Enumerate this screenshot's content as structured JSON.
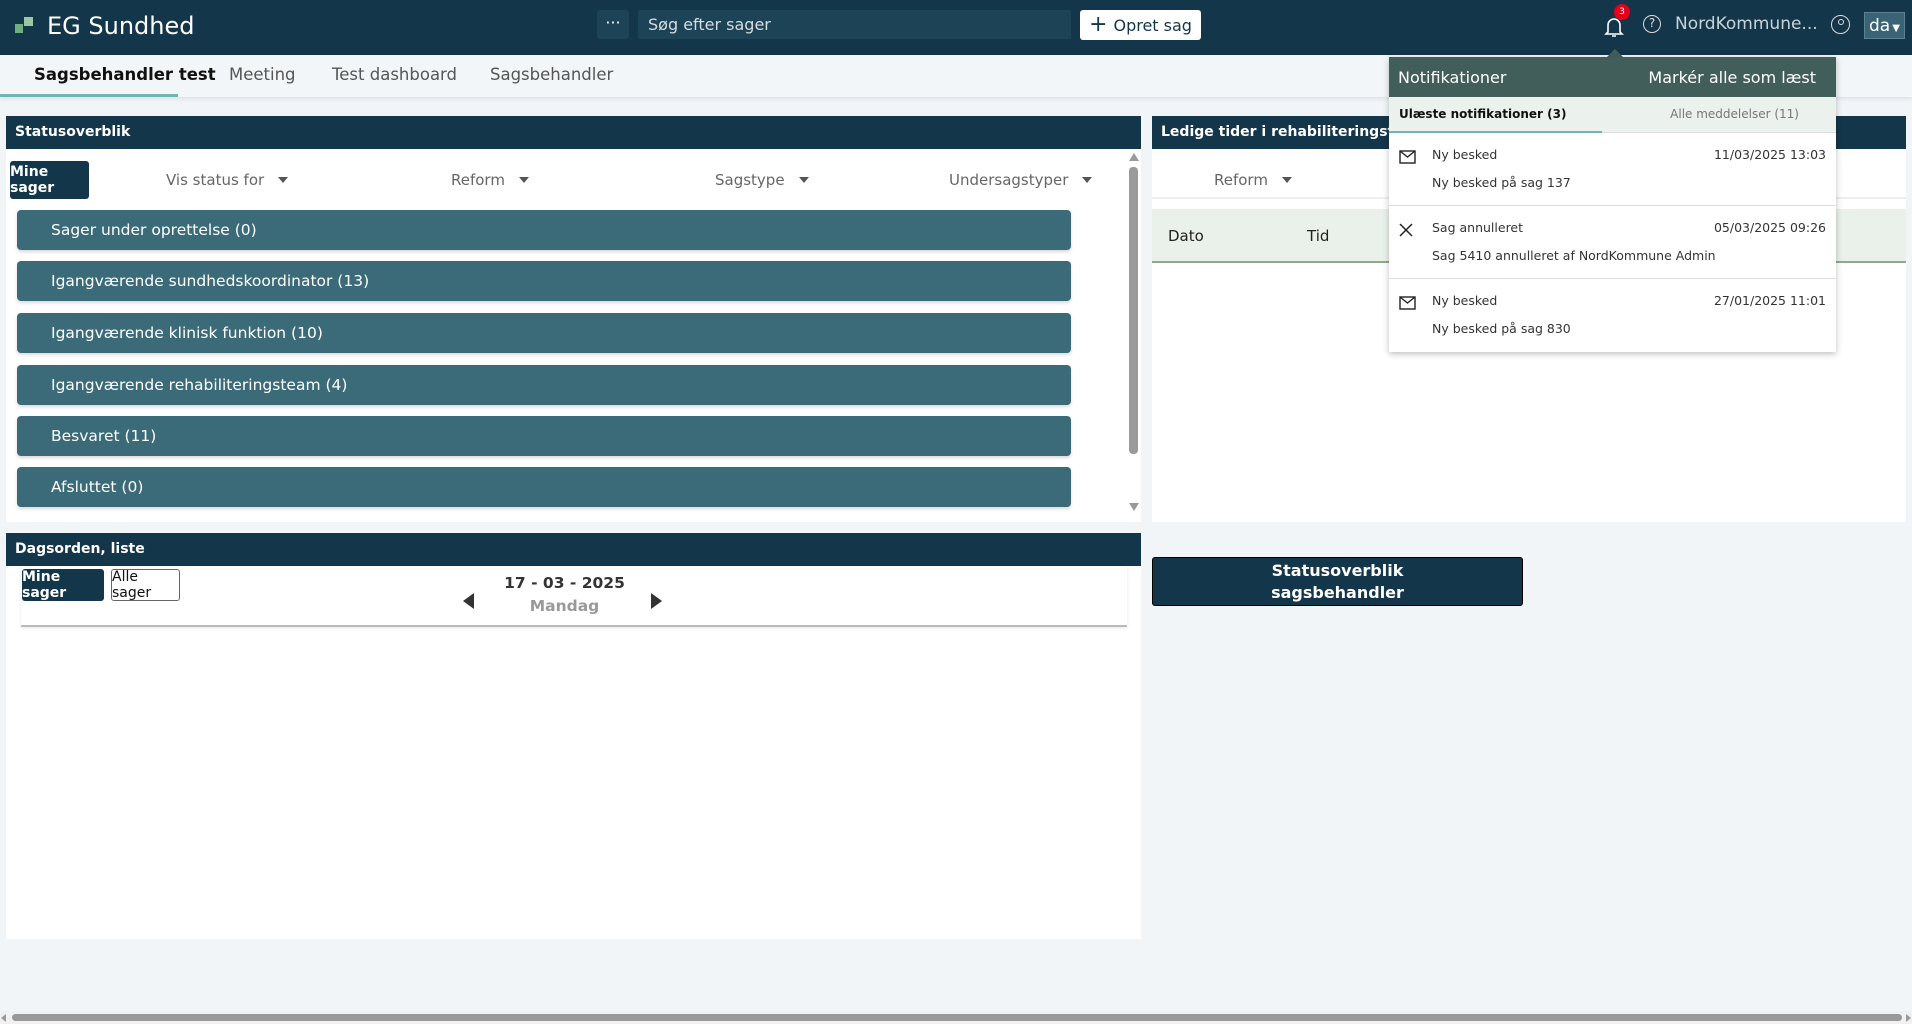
{
  "header": {
    "logo_text": "EG Sundhed",
    "more_label": "···",
    "search_placeholder": "Søg efter sager",
    "create_label": "Opret sag",
    "notification_count": "3",
    "help_label": "?",
    "user_name": "NordKommune...",
    "language": "da"
  },
  "tabs": [
    {
      "label": "Sagsbehandler test",
      "active": true
    },
    {
      "label": "Meeting"
    },
    {
      "label": "Test dashboard"
    },
    {
      "label": "Sagsbehandler"
    }
  ],
  "status_panel": {
    "title": "Statusoverblik",
    "mine_sager": "Mine sager",
    "filters": [
      "Vis status for",
      "Reform",
      "Sagstype",
      "Undersagstyper"
    ],
    "rows": [
      "Sager under oprettelse  (0)",
      "Igangværende sundhedskoordinator  (13)",
      "Igangværende klinisk funktion  (10)",
      "Igangværende rehabiliteringsteam  (4)",
      "Besvaret  (11)",
      "Afsluttet  (0)"
    ]
  },
  "agenda_panel": {
    "title": "Dagsorden, liste",
    "mine_sager": "Mine sager",
    "alle_sager": "Alle sager",
    "date": "17 - 03 - 2025",
    "weekday": "Mandag"
  },
  "free_times_panel": {
    "title": "Ledige tider i rehabiliteringsteam",
    "filter": "Reform",
    "columns": [
      "Dato",
      "Tid"
    ]
  },
  "status_button": {
    "line1": "Statusoverblik",
    "line2": "sagsbehandler"
  },
  "notifications": {
    "title": "Notifikationer",
    "mark_all": "Markér alle som læst",
    "tab_unread": "Ulæste notifikationer (3)",
    "tab_all": "Alle meddelelser (11)",
    "items": [
      {
        "icon": "mail-icon",
        "title": "Ny besked",
        "date": "11/03/2025 13:03",
        "text": "Ny besked på sag 137"
      },
      {
        "icon": "close-icon",
        "title": "Sag annulleret",
        "date": "05/03/2025 09:26",
        "text": "Sag 5410 annulleret af NordKommune Admin"
      },
      {
        "icon": "mail-icon",
        "title": "Ny besked",
        "date": "27/01/2025 11:01",
        "text": "Ny besked på sag 830"
      }
    ]
  },
  "colors": {
    "header": "#14364a",
    "status_row": "#3b6b78",
    "notif_header": "#425e5a",
    "accent": "#6fb5b0",
    "badge": "#e3001b"
  }
}
